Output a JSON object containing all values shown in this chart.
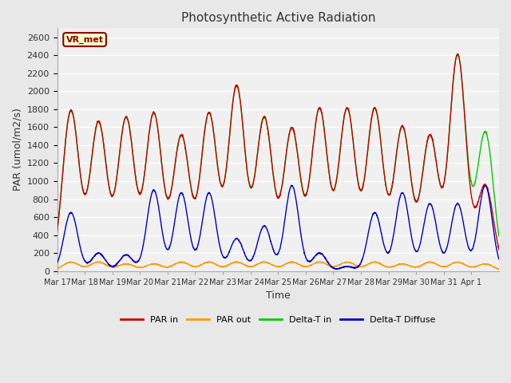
{
  "title": "Photosynthetic Active Radiation",
  "ylabel": "PAR (umol/m2/s)",
  "xlabel": "Time",
  "box_label": "VR_met",
  "ylim": [
    0,
    2700
  ],
  "yticks": [
    0,
    200,
    400,
    600,
    800,
    1000,
    1200,
    1400,
    1600,
    1800,
    2000,
    2200,
    2400,
    2600
  ],
  "xtick_labels": [
    "Mar 17",
    "Mar 18",
    "Mar 19",
    "Mar 20",
    "Mar 21",
    "Mar 22",
    "Mar 23",
    "Mar 24",
    "Mar 25",
    "Mar 26",
    "Mar 27",
    "Mar 28",
    "Mar 29",
    "Mar 30",
    "Mar 31",
    "Apr 1"
  ],
  "colors": {
    "PAR_in": "#cc0000",
    "PAR_out": "#ff9900",
    "Delta_T_in": "#00cc00",
    "Delta_T_Diffuse": "#0000cc"
  },
  "legend_labels": [
    "PAR in",
    "PAR out",
    "Delta-T in",
    "Delta-T Diffuse"
  ],
  "background_color": "#e8e8e8",
  "plot_bg_color": "#f0f0f0",
  "grid_color": "#ffffff",
  "n_days": 16,
  "points_per_day": 144,
  "seed": 42,
  "par_in_peaks": [
    1780,
    1650,
    1700,
    1750,
    1500,
    1750,
    2050,
    1700,
    1580,
    1800,
    1800,
    1800,
    1600,
    1500,
    2400,
    950
  ],
  "par_out_peaks": [
    100,
    100,
    80,
    80,
    100,
    100,
    100,
    100,
    100,
    100,
    100,
    100,
    80,
    100,
    100,
    80
  ],
  "delta_t_peaks": [
    1780,
    1650,
    1700,
    1750,
    1500,
    1750,
    2050,
    1700,
    1580,
    1800,
    1800,
    1800,
    1600,
    1500,
    2400,
    1540
  ],
  "diffuse_peaks": [
    650,
    200,
    180,
    900,
    870,
    870,
    360,
    500,
    950,
    200,
    50,
    650,
    870,
    750,
    750,
    950
  ]
}
